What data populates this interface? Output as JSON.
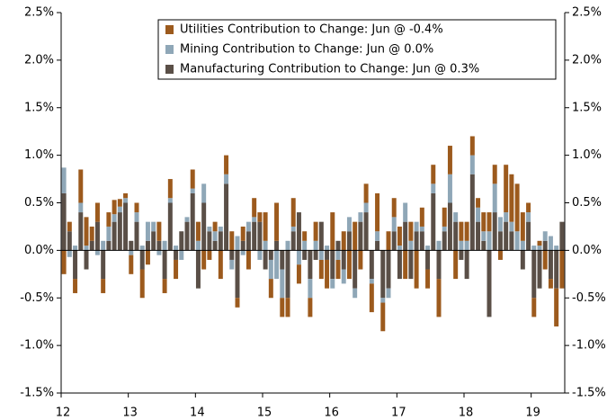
{
  "chart_data": {
    "type": "stacked_bar",
    "categories": [
      "12",
      null,
      null,
      null,
      null,
      null,
      null,
      null,
      null,
      null,
      null,
      null,
      "13",
      null,
      null,
      null,
      null,
      null,
      null,
      null,
      null,
      null,
      null,
      null,
      "14",
      null,
      null,
      null,
      null,
      null,
      null,
      null,
      null,
      null,
      null,
      null,
      "15",
      null,
      null,
      null,
      null,
      null,
      null,
      null,
      null,
      null,
      null,
      null,
      "16",
      null,
      null,
      null,
      null,
      null,
      null,
      null,
      null,
      null,
      null,
      null,
      "17",
      null,
      null,
      null,
      null,
      null,
      null,
      null,
      null,
      null,
      null,
      null,
      "18",
      null,
      null,
      null,
      null,
      null,
      null,
      null,
      null,
      null,
      null,
      null,
      "19",
      null,
      null,
      null,
      null,
      null
    ],
    "series": [
      {
        "name": "Manufacturing Contribution to Change: Jun @ 0.3%",
        "color": "#5a4f47",
        "values": [
          0.6,
          0.2,
          -0.3,
          0.4,
          -0.2,
          0.1,
          0.3,
          -0.3,
          0.1,
          0.3,
          0.4,
          0.5,
          0.1,
          0.3,
          -0.2,
          0.1,
          0.2,
          0.1,
          -0.3,
          0.5,
          -0.1,
          0.2,
          0.3,
          0.6,
          -0.4,
          0.5,
          0.2,
          0.1,
          0.2,
          0.7,
          -0.1,
          -0.5,
          0.1,
          0.2,
          0.3,
          0.3,
          -0.2,
          -0.1,
          0.1,
          -0.2,
          -0.5,
          0.2,
          0.4,
          -0.1,
          -0.3,
          -0.1,
          0.3,
          -0.1,
          -0.3,
          0.1,
          -0.2,
          0.2,
          -0.4,
          0.3,
          0.4,
          -0.3,
          0.1,
          -0.5,
          -0.4,
          0.2,
          -0.3,
          0.3,
          -0.3,
          0.2,
          0.2,
          -0.2,
          0.6,
          -0.3,
          0.2,
          0.5,
          0.3,
          -0.1,
          -0.3,
          0.8,
          0.3,
          0.1,
          -0.7,
          0.4,
          0.2,
          0.3,
          0.2,
          0.0,
          -0.2,
          0.3,
          -0.5,
          -0.4,
          0.1,
          -0.3,
          -0.4,
          0.3
        ]
      },
      {
        "name": "Mining Contribution to Change: Jun @ 0.0%",
        "color": "#8fa7b7",
        "values": [
          0.27,
          -0.07,
          0.05,
          0.1,
          0.05,
          0.0,
          -0.05,
          0.1,
          0.15,
          0.08,
          0.06,
          0.05,
          -0.05,
          0.1,
          0.05,
          0.2,
          0.1,
          -0.05,
          0.1,
          0.05,
          0.05,
          -0.1,
          0.05,
          0.05,
          0.1,
          0.2,
          0.05,
          0.1,
          0.05,
          0.1,
          -0.1,
          0.15,
          -0.05,
          0.1,
          0.05,
          -0.1,
          0.1,
          -0.2,
          -0.3,
          -0.3,
          0.1,
          0.05,
          -0.15,
          0.1,
          -0.2,
          0.1,
          -0.1,
          0.05,
          -0.1,
          -0.1,
          -0.15,
          0.15,
          -0.1,
          0.1,
          0.1,
          -0.05,
          0.1,
          -0.05,
          -0.1,
          0.15,
          0.05,
          0.2,
          0.1,
          0.1,
          0.05,
          0.05,
          0.1,
          0.1,
          0.05,
          0.3,
          0.1,
          0.1,
          0.1,
          0.2,
          0.15,
          0.1,
          0.2,
          0.3,
          0.15,
          0.1,
          0.1,
          0.2,
          0.1,
          0.1,
          0.05,
          0.05,
          0.1,
          0.15,
          0.05,
          0.0
        ]
      },
      {
        "name": "Utilities Contribution to Change: Jun @ -0.4%",
        "color": "#9c5a1d",
        "values": [
          -0.25,
          0.1,
          -0.15,
          0.35,
          0.3,
          0.15,
          0.2,
          -0.15,
          0.15,
          0.15,
          0.08,
          0.05,
          -0.2,
          0.1,
          -0.3,
          -0.15,
          0.0,
          0.2,
          -0.15,
          0.2,
          -0.2,
          0.0,
          0.0,
          0.2,
          0.2,
          -0.2,
          -0.1,
          0.1,
          -0.3,
          0.2,
          0.2,
          -0.1,
          0.15,
          -0.2,
          0.2,
          0.1,
          0.3,
          -0.2,
          0.4,
          -0.2,
          -0.2,
          0.3,
          -0.2,
          0.1,
          -0.2,
          0.2,
          -0.2,
          -0.3,
          0.4,
          -0.2,
          0.2,
          -0.3,
          0.3,
          -0.2,
          0.2,
          -0.3,
          0.4,
          -0.3,
          0.2,
          0.2,
          0.2,
          -0.3,
          0.2,
          -0.4,
          0.2,
          -0.2,
          0.2,
          -0.4,
          0.2,
          0.3,
          -0.3,
          0.2,
          0.2,
          0.2,
          0.1,
          0.2,
          0.2,
          0.2,
          -0.1,
          0.5,
          0.5,
          0.5,
          0.3,
          0.1,
          -0.2,
          0.05,
          -0.2,
          -0.1,
          -0.4,
          -0.4
        ]
      }
    ],
    "ylim": [
      -1.5,
      2.5
    ],
    "yticks": [
      {
        "value": -1.5,
        "label": "-1.5%"
      },
      {
        "value": -1.0,
        "label": "-1.0%"
      },
      {
        "value": -0.5,
        "label": "-0.5%"
      },
      {
        "value": 0,
        "label": "0.0%"
      },
      {
        "value": 0.5,
        "label": "0.5%"
      },
      {
        "value": 1.0,
        "label": "1.0%"
      },
      {
        "value": 1.5,
        "label": "1.5%"
      },
      {
        "value": 2.0,
        "label": "2.0%"
      },
      {
        "value": 2.5,
        "label": "2.5%"
      }
    ],
    "y2lim": [
      -1.5,
      2.5
    ],
    "y2ticks": [
      {
        "value": -1.5,
        "label": "-1.5%"
      },
      {
        "value": -1.0,
        "label": "-1.0%"
      },
      {
        "value": -0.5,
        "label": "-0.5%"
      },
      {
        "value": 0,
        "label": "0.0%"
      },
      {
        "value": 0.5,
        "label": "0.5%"
      },
      {
        "value": 1.0,
        "label": "1.0%"
      },
      {
        "value": 1.5,
        "label": "1.5%"
      },
      {
        "value": 2.0,
        "label": "2.0%"
      },
      {
        "value": 2.5,
        "label": "2.5%"
      }
    ],
    "legend": "upper right"
  }
}
